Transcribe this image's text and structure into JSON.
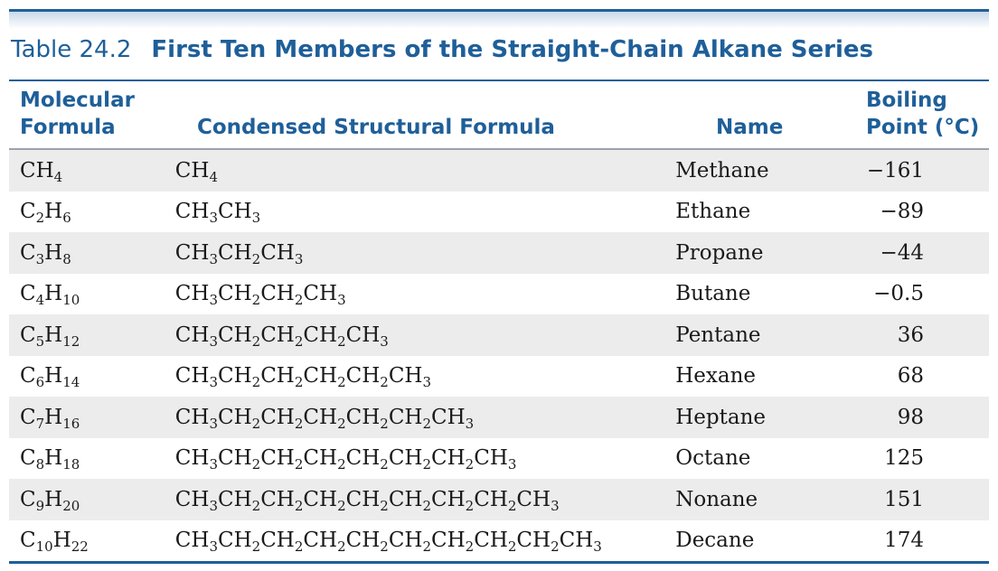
{
  "table": {
    "number": "Table 24.2",
    "title": "First Ten Members of the Straight-Chain Alkane Series",
    "headers": {
      "molecular_formula": [
        "Molecular",
        "Formula"
      ],
      "condensed": "Condensed Structural Formula",
      "name": "Name",
      "boiling_point": [
        "Boiling",
        "Point (°C)"
      ]
    },
    "rows": [
      {
        "molecular": "CH_4",
        "condensed": "CH_4",
        "name": "Methane",
        "bp": "−161"
      },
      {
        "molecular": "C_2H_6",
        "condensed": "CH_3CH_3",
        "name": "Ethane",
        "bp": "−89"
      },
      {
        "molecular": "C_3H_8",
        "condensed": "CH_3CH_2CH_3",
        "name": "Propane",
        "bp": "−44"
      },
      {
        "molecular": "C_4H_10",
        "condensed": "CH_3CH_2CH_2CH_3",
        "name": "Butane",
        "bp": "−0.5"
      },
      {
        "molecular": "C_5H_12",
        "condensed": "CH_3CH_2CH_2CH_2CH_3",
        "name": "Pentane",
        "bp": "36"
      },
      {
        "molecular": "C_6H_14",
        "condensed": "CH_3CH_2CH_2CH_2CH_2CH_3",
        "name": "Hexane",
        "bp": "68"
      },
      {
        "molecular": "C_7H_16",
        "condensed": "CH_3CH_2CH_2CH_2CH_2CH_2CH_3",
        "name": "Heptane",
        "bp": "98"
      },
      {
        "molecular": "C_8H_18",
        "condensed": "CH_3CH_2CH_2CH_2CH_2CH_2CH_2CH_3",
        "name": "Octane",
        "bp": "125"
      },
      {
        "molecular": "C_9H_20",
        "condensed": "CH_3CH_2CH_2CH_2CH_2CH_2CH_2CH_2CH_3",
        "name": "Nonane",
        "bp": "151"
      },
      {
        "molecular": "C_10H_22",
        "condensed": "CH_3CH_2CH_2CH_2CH_2CH_2CH_2CH_2CH_2CH_3",
        "name": "Decane",
        "bp": "174"
      }
    ]
  }
}
